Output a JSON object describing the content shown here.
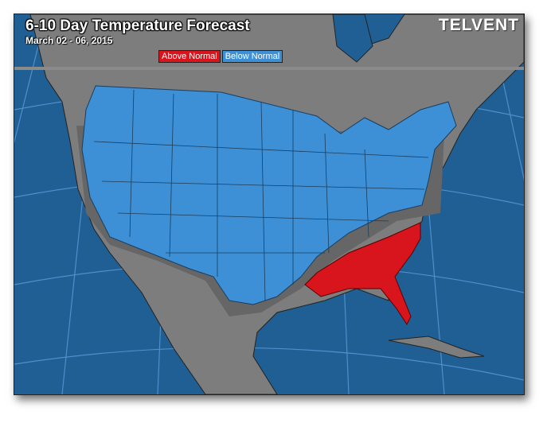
{
  "header": {
    "title": "6-10 Day Temperature Forecast",
    "subtitle": "March 02 - 06, 2015",
    "logo": "TELVENT"
  },
  "legend": [
    {
      "label": "Above Normal",
      "color": "#d8141c"
    },
    {
      "label": "Below Normal",
      "color": "#3d8fd6"
    }
  ],
  "colors": {
    "ocean": "#1f5f93",
    "land": "#7d7d7d",
    "normal_band": "#666666"
  }
}
